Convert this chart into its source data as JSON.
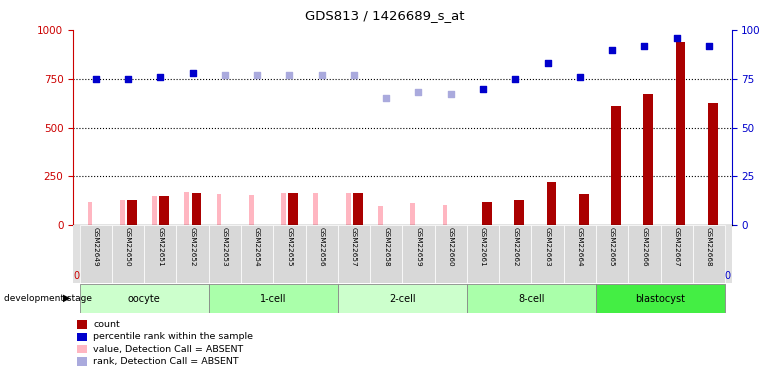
{
  "title": "GDS813 / 1426689_s_at",
  "samples": [
    "GSM22649",
    "GSM22650",
    "GSM22651",
    "GSM22652",
    "GSM22653",
    "GSM22654",
    "GSM22655",
    "GSM22656",
    "GSM22657",
    "GSM22658",
    "GSM22659",
    "GSM22660",
    "GSM22661",
    "GSM22662",
    "GSM22663",
    "GSM22664",
    "GSM22665",
    "GSM22666",
    "GSM22667",
    "GSM22668"
  ],
  "count_values": [
    0,
    130,
    150,
    165,
    0,
    0,
    165,
    0,
    165,
    0,
    0,
    0,
    120,
    130,
    220,
    160,
    610,
    670,
    940,
    625
  ],
  "count_absent": [
    true,
    false,
    false,
    false,
    true,
    true,
    false,
    true,
    false,
    true,
    true,
    true,
    false,
    false,
    false,
    false,
    false,
    false,
    false,
    false
  ],
  "value_absent": [
    120,
    130,
    150,
    170,
    160,
    155,
    165,
    165,
    165,
    100,
    115,
    105,
    0,
    0,
    0,
    0,
    0,
    0,
    0,
    0
  ],
  "rank_values": [
    750,
    750,
    760,
    780,
    770,
    770,
    770,
    770,
    770,
    650,
    680,
    670,
    700,
    750,
    830,
    760,
    900,
    920,
    960,
    920
  ],
  "rank_absent": [
    false,
    false,
    false,
    false,
    true,
    true,
    true,
    true,
    true,
    true,
    true,
    true,
    false,
    false,
    false,
    false,
    false,
    false,
    false,
    false
  ],
  "stages": [
    {
      "label": "oocyte",
      "start": 0,
      "end": 4,
      "color": "#CCFFCC"
    },
    {
      "label": "1-cell",
      "start": 4,
      "end": 8,
      "color": "#AAFFAA"
    },
    {
      "label": "2-cell",
      "start": 8,
      "end": 12,
      "color": "#CCFFCC"
    },
    {
      "label": "8-cell",
      "start": 12,
      "end": 16,
      "color": "#AAFFAA"
    },
    {
      "label": "blastocyst",
      "start": 16,
      "end": 20,
      "color": "#44EE44"
    }
  ],
  "count_color": "#AA0000",
  "count_absent_color": "#FFB6C1",
  "rank_color": "#0000CC",
  "rank_absent_color": "#AAAADD",
  "ylim_left": [
    0,
    1000
  ],
  "ylim_right": [
    0,
    100
  ],
  "yticks_left": [
    0,
    250,
    500,
    750,
    1000
  ],
  "yticks_right": [
    0,
    25,
    50,
    75,
    100
  ],
  "bar_width": 0.3,
  "absent_bar_width": 0.15
}
